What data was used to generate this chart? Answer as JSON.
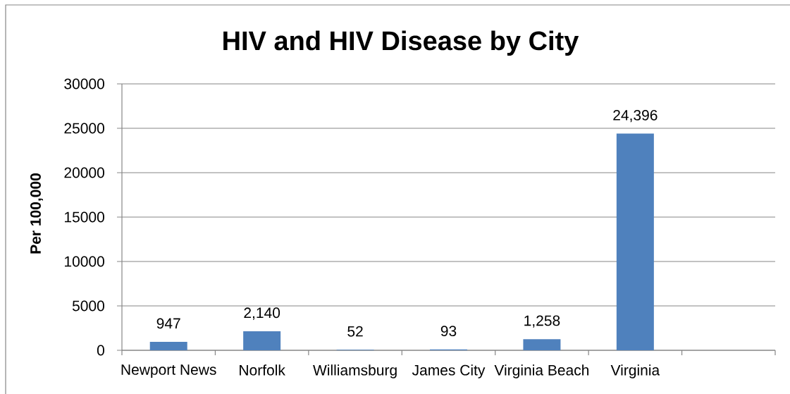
{
  "chart_data": {
    "type": "bar",
    "title": "HIV and HIV Disease by City",
    "ylabel": "Per 100,000",
    "categories": [
      "Newport News",
      "Norfolk",
      "Williamsburg",
      "James City",
      "Virginia Beach",
      "Virginia",
      null
    ],
    "values": [
      947,
      2140,
      52,
      93,
      1258,
      24396,
      null
    ],
    "value_labels": [
      "947",
      "2,140",
      "52",
      "93",
      "1,258",
      "24,396",
      null
    ],
    "color": "#4f81bd",
    "ylim": [
      0,
      30000
    ],
    "yticks": [
      0,
      5000,
      10000,
      15000,
      20000,
      25000,
      30000
    ],
    "grid": "y"
  }
}
